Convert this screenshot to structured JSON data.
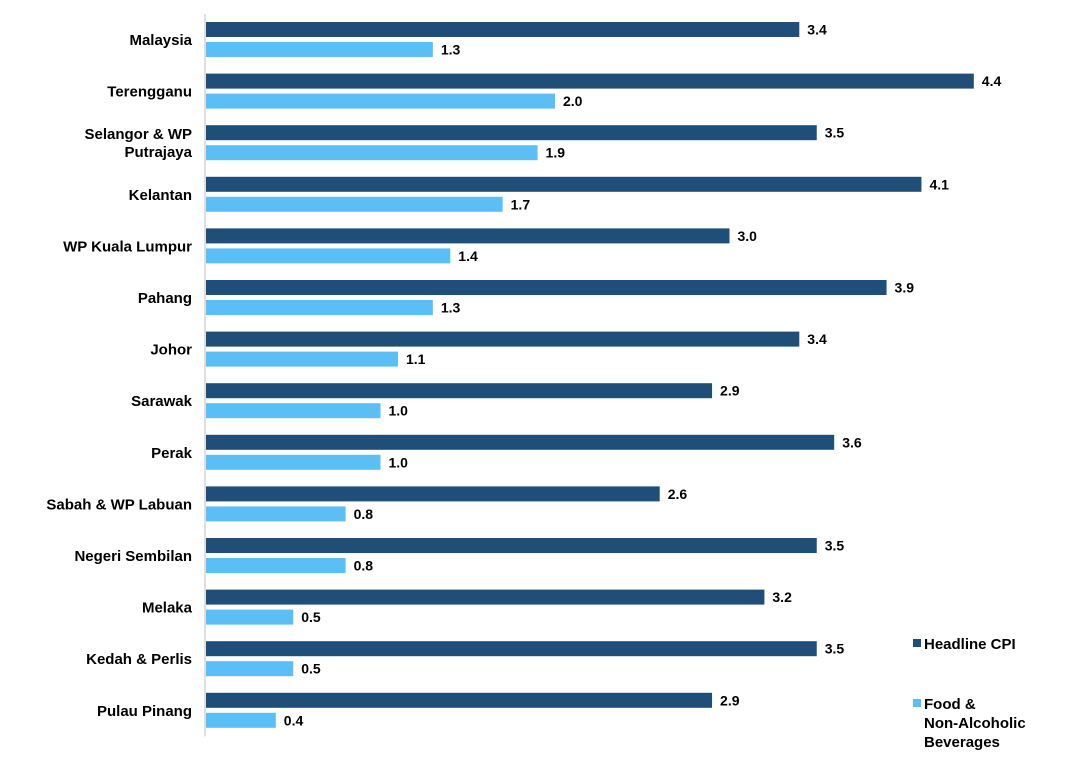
{
  "chart_data": {
    "type": "bar",
    "orientation": "horizontal",
    "categories": [
      "Malaysia",
      "Terengganu",
      "Selangor & WP Putrajaya",
      "Kelantan",
      "WP Kuala Lumpur",
      "Pahang",
      "Johor",
      "Sarawak",
      "Perak",
      "Sabah & WP Labuan",
      "Negeri Sembilan",
      "Melaka",
      "Kedah & Perlis",
      "Pulau Pinang"
    ],
    "category_label_lines": [
      [
        "Malaysia"
      ],
      [
        "Terengganu"
      ],
      [
        "Selangor & WP",
        "Putrajaya"
      ],
      [
        "Kelantan"
      ],
      [
        "WP Kuala Lumpur"
      ],
      [
        "Pahang"
      ],
      [
        "Johor"
      ],
      [
        "Sarawak"
      ],
      [
        "Perak"
      ],
      [
        "Sabah & WP Labuan"
      ],
      [
        "Negeri Sembilan"
      ],
      [
        "Melaka"
      ],
      [
        "Kedah & Perlis"
      ],
      [
        "Pulau Pinang"
      ]
    ],
    "series": [
      {
        "name": "Headline CPI",
        "color": "#1f4e79",
        "values": [
          3.4,
          4.4,
          3.5,
          4.1,
          3.0,
          3.9,
          3.4,
          2.9,
          3.6,
          2.6,
          3.5,
          3.2,
          3.5,
          2.9
        ]
      },
      {
        "name": "Food & Non-Alcoholic Beverages",
        "legend_lines": [
          "Food &",
          "Non-Alcoholic",
          "Beverages"
        ],
        "color": "#5bbff5",
        "values": [
          1.3,
          2.0,
          1.9,
          1.7,
          1.4,
          1.3,
          1.1,
          1.0,
          1.0,
          0.8,
          0.8,
          0.5,
          0.5,
          0.4
        ]
      }
    ],
    "xlim": [
      0,
      5.2
    ],
    "grid": false,
    "legend_position": "right",
    "data_labels": true
  }
}
